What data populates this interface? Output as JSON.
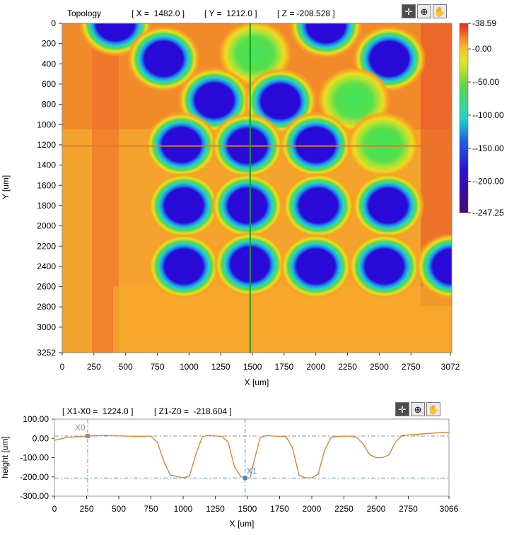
{
  "topology": {
    "title": "Topology",
    "readout_x": "[ X =  1482.0 ]",
    "readout_y": "[ Y =  1212.0 ]",
    "readout_z": "[ Z = -208.528 ]",
    "toolbar": {
      "cursor_icon": "crosshair-icon",
      "zoom_icon": "zoom-icon",
      "pan_icon": "hand-icon"
    }
  },
  "profile": {
    "readout_dx": "[ X1-X0 =  1224.0 ]",
    "readout_dz": "[ Z1-Z0 =  -218.604 ]",
    "toolbar": {
      "cursor_icon": "crosshair-icon",
      "zoom_icon": "zoom-icon",
      "pan_icon": "hand-icon"
    }
  },
  "chart_data": [
    {
      "type": "heatmap",
      "title": "Topology",
      "xlabel": "X [um]",
      "ylabel": "Y [um]",
      "xlim": [
        0,
        3072
      ],
      "ylim": [
        3252,
        0
      ],
      "x_ticks": [
        "0",
        "250",
        "500",
        "750",
        "1000",
        "1250",
        "1500",
        "1750",
        "2000",
        "2250",
        "2500",
        "2750",
        "3072"
      ],
      "y_ticks": [
        "0",
        "200",
        "400",
        "600",
        "800",
        "1000",
        "1200",
        "1400",
        "1600",
        "1800",
        "2000",
        "2200",
        "2400",
        "2600",
        "2800",
        "3000",
        "3252"
      ],
      "colorbar_ticks": [
        "38.59",
        "0.00",
        "-50.00",
        "-100.00",
        "-150.00",
        "-200.00",
        "-247.25"
      ],
      "z_range": [
        -247.25,
        38.59
      ],
      "background_level": 10,
      "cursor": {
        "x": 1482,
        "y": 1212,
        "z": -208.528,
        "colors": {
          "vertical": "#1a9e1a",
          "horizontal": "#e07b28"
        }
      },
      "wells": [
        {
          "x": 420,
          "y": 0,
          "z": -210
        },
        {
          "x": 2080,
          "y": 20,
          "z": -210
        },
        {
          "x": 800,
          "y": 350,
          "z": -215
        },
        {
          "x": 1520,
          "y": 300,
          "z": -80
        },
        {
          "x": 2580,
          "y": 350,
          "z": -215
        },
        {
          "x": 1200,
          "y": 760,
          "z": -215
        },
        {
          "x": 1720,
          "y": 770,
          "z": -215
        },
        {
          "x": 2300,
          "y": 760,
          "z": -80
        },
        {
          "x": 940,
          "y": 1200,
          "z": -215
        },
        {
          "x": 1460,
          "y": 1210,
          "z": -215
        },
        {
          "x": 2000,
          "y": 1200,
          "z": -215
        },
        {
          "x": 2530,
          "y": 1200,
          "z": -90
        },
        {
          "x": 960,
          "y": 1800,
          "z": -215
        },
        {
          "x": 1460,
          "y": 1800,
          "z": -215
        },
        {
          "x": 2020,
          "y": 1800,
          "z": -210
        },
        {
          "x": 2570,
          "y": 1800,
          "z": -215
        },
        {
          "x": 960,
          "y": 2400,
          "z": -215
        },
        {
          "x": 1480,
          "y": 2380,
          "z": -215
        },
        {
          "x": 2000,
          "y": 2400,
          "z": -215
        },
        {
          "x": 2540,
          "y": 2400,
          "z": -215
        },
        {
          "x": 3072,
          "y": 2400,
          "z": -215
        }
      ]
    },
    {
      "type": "line",
      "xlabel": "X [um]",
      "ylabel": "height [um]",
      "xlim": [
        0,
        3066
      ],
      "ylim": [
        -300,
        100
      ],
      "x_ticks": [
        "0",
        "250",
        "500",
        "750",
        "1000",
        "1250",
        "1500",
        "1750",
        "2000",
        "2250",
        "2500",
        "2750",
        "3066"
      ],
      "y_ticks": [
        "100.00",
        "0.00",
        "-100.00",
        "-200.00",
        "-300.00"
      ],
      "series": [
        {
          "color": "#e07b28",
          "x": [
            0,
            100,
            258,
            400,
            550,
            650,
            750,
            800,
            850,
            900,
            1000,
            1050,
            1100,
            1150,
            1200,
            1300,
            1350,
            1400,
            1450,
            1482,
            1520,
            1550,
            1600,
            1650,
            1700,
            1800,
            1850,
            1900,
            1950,
            2000,
            2050,
            2100,
            2150,
            2200,
            2300,
            2350,
            2400,
            2450,
            2500,
            2550,
            2600,
            2650,
            2700,
            2800,
            2900,
            3000,
            3066
          ],
          "y": [
            -10,
            5,
            12,
            15,
            12,
            10,
            12,
            -20,
            -120,
            -190,
            -205,
            -195,
            -80,
            10,
            15,
            10,
            -20,
            -150,
            -200,
            -206,
            -205,
            -120,
            5,
            15,
            12,
            10,
            -50,
            -190,
            -205,
            -205,
            -185,
            -60,
            5,
            10,
            12,
            5,
            -30,
            -85,
            -100,
            -100,
            -85,
            -20,
            15,
            20,
            25,
            30,
            32
          ]
        }
      ],
      "cursors": [
        {
          "name": "X0",
          "x": 258,
          "y": 12,
          "color": "#909090"
        },
        {
          "name": "X1",
          "x": 1482,
          "y": -206,
          "color": "#3a8fd8"
        }
      ]
    }
  ]
}
